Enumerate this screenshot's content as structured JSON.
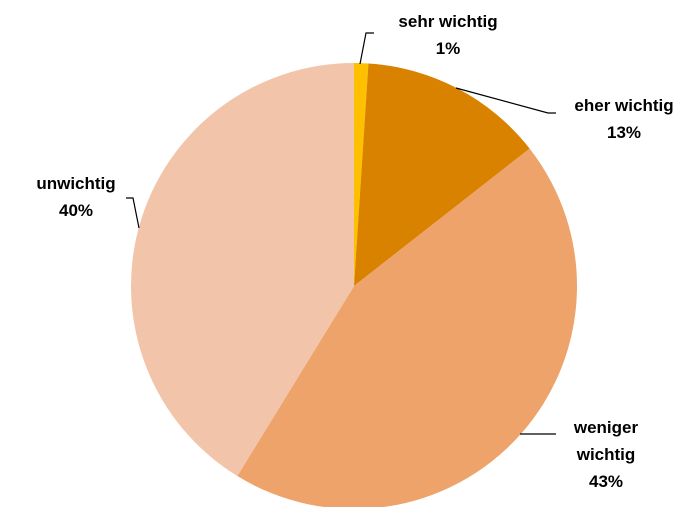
{
  "chart_data": {
    "type": "pie",
    "categories": [
      "sehr wichtig",
      "eher wichtig",
      "weniger wichtig",
      "unwichtig"
    ],
    "values": [
      1,
      13,
      43,
      40
    ],
    "value_labels": [
      "1%",
      "13%",
      "43%",
      "40%"
    ],
    "colors": [
      "#FFC000",
      "#D98200",
      "#EDA36A",
      "#F2C5AA"
    ]
  }
}
